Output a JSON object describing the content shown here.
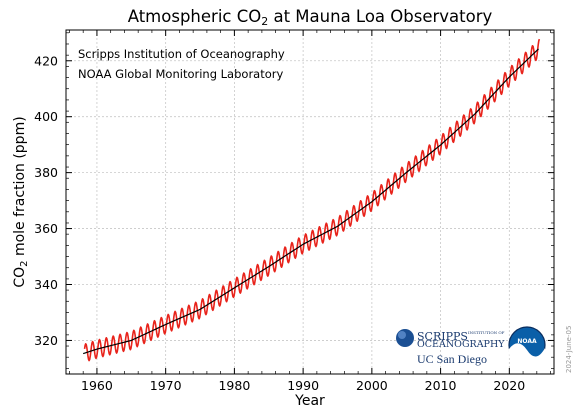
{
  "chart_data": {
    "type": "line",
    "title_main": "Atmospheric CO",
    "title_sub": "2",
    "title_rest": " at Mauna Loa Observatory",
    "xlabel": "Year",
    "ylabel_main": "CO",
    "ylabel_sub": "2",
    "ylabel_rest": " mole fraction (ppm)",
    "xlim": [
      1955.5,
      2026.5
    ],
    "ylim": [
      308,
      431
    ],
    "x_ticks": [
      1960,
      1970,
      1980,
      1990,
      2000,
      2010,
      2020
    ],
    "y_ticks": [
      320,
      340,
      360,
      380,
      400,
      420
    ],
    "grid": true,
    "annotations": [
      "Scripps Institution of Oceanography",
      "NOAA Global Monitoring Laboratory"
    ],
    "series": [
      {
        "color": "#e8231b",
        "style": "seasonal-cycle",
        "seasonal_amplitude_ppm": 3.2,
        "start_year": 1958.2,
        "end_year": 2024.4
      },
      {
        "color": "#000000",
        "style": "trend",
        "x": [
          1958,
          1960,
          1965,
          1970,
          1975,
          1980,
          1985,
          1990,
          1995,
          2000,
          2005,
          2010,
          2015,
          2020,
          2024.4
        ],
        "values": [
          315.3,
          316.9,
          320.0,
          325.7,
          331.1,
          338.8,
          346.4,
          354.4,
          360.8,
          369.6,
          380.0,
          389.9,
          401.0,
          414.2,
          424.6
        ]
      }
    ]
  },
  "logos": {
    "scripps_line1": "SCRIPPS",
    "scripps_line2": "INSTITUTION OF",
    "scripps_line3": "OCEANOGRAPHY",
    "ucsd": "UC San Diego",
    "noaa": "NOAA"
  },
  "date_stamp": "2024-June-05",
  "colors": {
    "monthly": "#e8231b",
    "trend": "#000000",
    "noaa_blue": "#0a5fa8",
    "scripps_navy": "#1b3b6f"
  }
}
